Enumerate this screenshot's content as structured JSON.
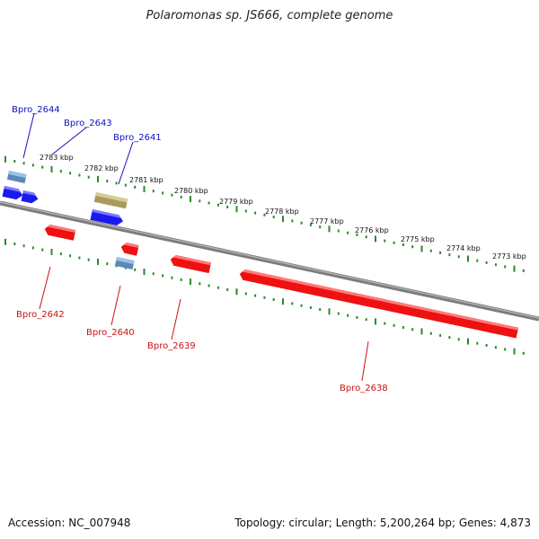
{
  "title": "Polaromonas sp. JS666, complete genome",
  "footer": {
    "accession": "Accession: NC_007948",
    "summary": "Topology: circular; Length: 5,200,264 bp; Genes: 4,873"
  },
  "colors": {
    "backbone": "#7c7c7c",
    "tick": "#2a8a2a",
    "forward_cds": "#1a1aee",
    "reverse_cds": "#ee1111",
    "rna": "#5b88b8",
    "pseudo": "#a89a5a",
    "forward_label": "#1010c0",
    "reverse_label": "#cc1010"
  },
  "scale_labels": [
    "2783 kbp",
    "2782 kbp",
    "2781 kbp",
    "2780 kbp",
    "2779 kbp",
    "2778 kbp",
    "2777 kbp",
    "2776 kbp",
    "2775 kbp",
    "2774 kbp",
    "2773 kbp"
  ],
  "genes": [
    {
      "name": "Bpro_2644",
      "strand": "forward"
    },
    {
      "name": "Bpro_2643",
      "strand": "forward"
    },
    {
      "name": "Bpro_2641",
      "strand": "forward"
    },
    {
      "name": "Bpro_2642",
      "strand": "reverse"
    },
    {
      "name": "Bpro_2640",
      "strand": "reverse"
    },
    {
      "name": "Bpro_2639",
      "strand": "reverse"
    },
    {
      "name": "Bpro_2638",
      "strand": "reverse"
    }
  ]
}
